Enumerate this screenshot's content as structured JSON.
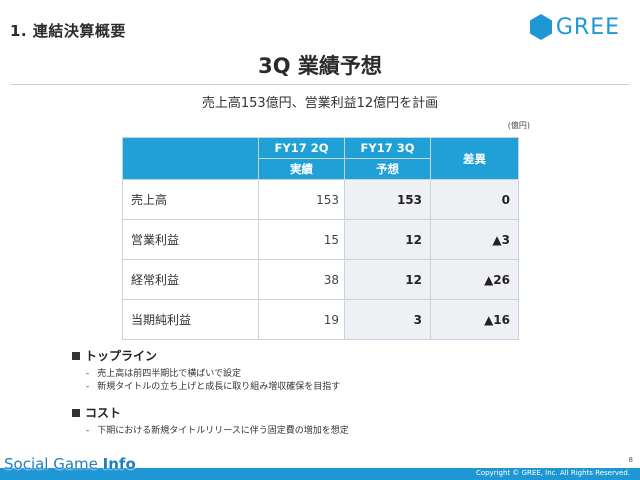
{
  "header": {
    "section_title": "1. 連結決算概要",
    "logo_text": "GREE",
    "brand_color": "#1f97d4"
  },
  "slide": {
    "title": "3Q 業績予想",
    "subtitle": "売上高153億円、営業利益12億円を計画",
    "unit": "(億円)"
  },
  "table": {
    "col_fy17_2q": "FY17 2Q",
    "col_fy17_2q_sub": "実績",
    "col_fy17_3q": "FY17 3Q",
    "col_fy17_3q_sub": "予想",
    "col_diff": "差異",
    "rows": [
      {
        "label": "売上高",
        "actual": "153",
        "forecast": "153",
        "diff": "0"
      },
      {
        "label": "営業利益",
        "actual": "15",
        "forecast": "12",
        "diff": "▲3"
      },
      {
        "label": "経常利益",
        "actual": "38",
        "forecast": "12",
        "diff": "▲26"
      },
      {
        "label": "当期純利益",
        "actual": "19",
        "forecast": "3",
        "diff": "▲16"
      }
    ]
  },
  "notes": [
    {
      "heading": "トップライン",
      "items": [
        "売上高は前四半期比で横ばいで設定",
        "新規タイトルの立ち上げと成長に取り組み増収確保を目指す"
      ]
    },
    {
      "heading": "コスト",
      "items": [
        "下期における新規タイトルリリースに伴う固定費の増加を想定"
      ]
    }
  ],
  "footer": {
    "page_number": "8",
    "copyright": "Copyright © GREE, Inc. All Rights Reserved.",
    "watermark_part1": "Social Game ",
    "watermark_part2": "Info"
  }
}
